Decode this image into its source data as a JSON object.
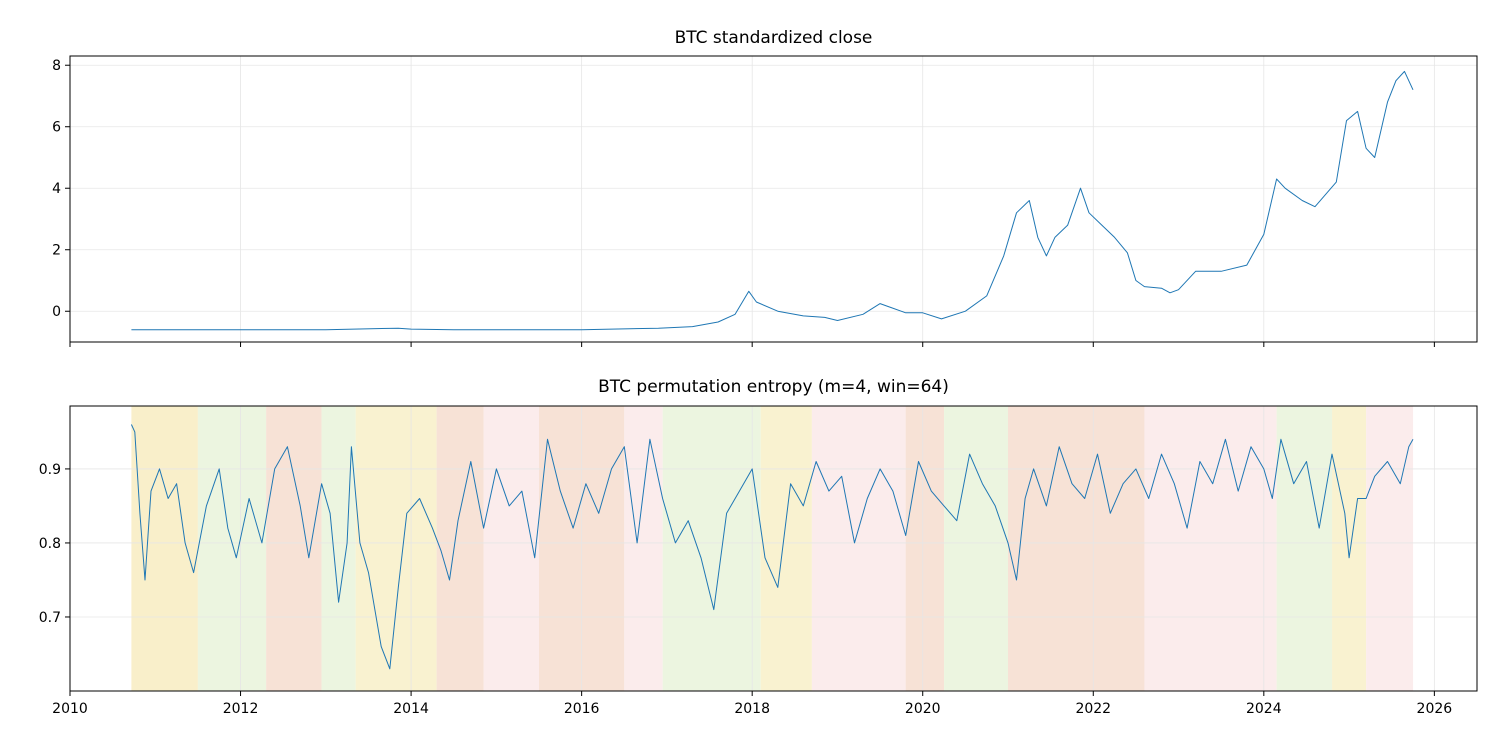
{
  "chart_data": [
    {
      "type": "line",
      "title": "BTC standardized close",
      "xlabel": "",
      "ylabel": "",
      "x_range": [
        2010.0,
        2026.5
      ],
      "ylim": [
        -1.0,
        8.3
      ],
      "y_ticks": [
        0,
        2,
        4,
        6,
        8
      ],
      "y_tick_labels": [
        "0",
        "2",
        "4",
        "6",
        "8"
      ],
      "grid": true,
      "color": "#1f77b4",
      "series": [
        {
          "x": [
            2010.72,
            2012.0,
            2013.0,
            2013.85,
            2014.0,
            2014.5,
            2015.0,
            2016.0,
            2016.9,
            2017.3,
            2017.6,
            2017.8,
            2017.96,
            2018.05,
            2018.3,
            2018.6,
            2018.85,
            2019.0,
            2019.3,
            2019.5,
            2019.8,
            2020.0,
            2020.22,
            2020.5,
            2020.75,
            2020.95,
            2021.1,
            2021.25,
            2021.35,
            2021.45,
            2021.55,
            2021.7,
            2021.85,
            2021.95,
            2022.1,
            2022.25,
            2022.4,
            2022.5,
            2022.6,
            2022.8,
            2022.9,
            2023.0,
            2023.2,
            2023.5,
            2023.8,
            2024.0,
            2024.15,
            2024.25,
            2024.45,
            2024.6,
            2024.85,
            2024.97,
            2025.1,
            2025.2,
            2025.3,
            2025.45,
            2025.55,
            2025.65,
            2025.75
          ],
          "y": [
            -0.6,
            -0.6,
            -0.6,
            -0.55,
            -0.58,
            -0.6,
            -0.6,
            -0.6,
            -0.55,
            -0.5,
            -0.35,
            -0.1,
            0.65,
            0.3,
            0.0,
            -0.15,
            -0.2,
            -0.3,
            -0.1,
            0.25,
            -0.05,
            -0.05,
            -0.25,
            0.0,
            0.5,
            1.8,
            3.2,
            3.6,
            2.4,
            1.8,
            2.4,
            2.8,
            4.0,
            3.2,
            2.8,
            2.4,
            1.9,
            1.0,
            0.8,
            0.75,
            0.6,
            0.7,
            1.3,
            1.3,
            1.5,
            2.5,
            4.3,
            4.0,
            3.6,
            3.4,
            4.2,
            6.2,
            6.5,
            5.3,
            5.0,
            6.8,
            7.5,
            7.8,
            7.2
          ]
        }
      ]
    },
    {
      "type": "line",
      "title": "BTC permutation entropy (m=4, win=64)",
      "xlabel": "",
      "ylabel": "",
      "x_range": [
        2010.0,
        2026.5
      ],
      "x_ticks": [
        2010,
        2012,
        2014,
        2016,
        2018,
        2020,
        2022,
        2024,
        2026
      ],
      "x_tick_labels": [
        "2010",
        "2012",
        "2014",
        "2016",
        "2018",
        "2020",
        "2022",
        "2024",
        "2026"
      ],
      "ylim": [
        0.6,
        0.985
      ],
      "y_ticks": [
        0.7,
        0.8,
        0.9
      ],
      "y_tick_labels": [
        "0.7",
        "0.8",
        "0.9"
      ],
      "grid": true,
      "color": "#1f77b4",
      "series": [
        {
          "x": [
            2010.72,
            2010.76,
            2010.82,
            2010.88,
            2010.95,
            2011.05,
            2011.15,
            2011.25,
            2011.35,
            2011.45,
            2011.6,
            2011.75,
            2011.85,
            2011.95,
            2012.1,
            2012.25,
            2012.4,
            2012.55,
            2012.7,
            2012.8,
            2012.95,
            2013.05,
            2013.15,
            2013.25,
            2013.3,
            2013.4,
            2013.5,
            2013.65,
            2013.75,
            2013.85,
            2013.95,
            2014.1,
            2014.25,
            2014.35,
            2014.45,
            2014.55,
            2014.7,
            2014.85,
            2015.0,
            2015.15,
            2015.3,
            2015.45,
            2015.6,
            2015.75,
            2015.9,
            2016.05,
            2016.2,
            2016.35,
            2016.5,
            2016.65,
            2016.8,
            2016.95,
            2017.1,
            2017.25,
            2017.4,
            2017.55,
            2017.7,
            2017.85,
            2018.0,
            2018.15,
            2018.3,
            2018.45,
            2018.6,
            2018.75,
            2018.9,
            2019.05,
            2019.2,
            2019.35,
            2019.5,
            2019.65,
            2019.8,
            2019.95,
            2020.1,
            2020.25,
            2020.4,
            2020.55,
            2020.7,
            2020.85,
            2021.0,
            2021.1,
            2021.2,
            2021.3,
            2021.45,
            2021.6,
            2021.75,
            2021.9,
            2022.05,
            2022.2,
            2022.35,
            2022.5,
            2022.65,
            2022.8,
            2022.95,
            2023.1,
            2023.25,
            2023.4,
            2023.55,
            2023.7,
            2023.85,
            2024.0,
            2024.1,
            2024.2,
            2024.35,
            2024.5,
            2024.65,
            2024.8,
            2024.95,
            2025.0,
            2025.1,
            2025.2,
            2025.3,
            2025.45,
            2025.6,
            2025.7,
            2025.75
          ],
          "y": [
            0.96,
            0.95,
            0.84,
            0.75,
            0.87,
            0.9,
            0.86,
            0.88,
            0.8,
            0.76,
            0.85,
            0.9,
            0.82,
            0.78,
            0.86,
            0.8,
            0.9,
            0.93,
            0.85,
            0.78,
            0.88,
            0.84,
            0.72,
            0.8,
            0.93,
            0.8,
            0.76,
            0.66,
            0.63,
            0.74,
            0.84,
            0.86,
            0.82,
            0.79,
            0.75,
            0.83,
            0.91,
            0.82,
            0.9,
            0.85,
            0.87,
            0.78,
            0.94,
            0.87,
            0.82,
            0.88,
            0.84,
            0.9,
            0.93,
            0.8,
            0.94,
            0.86,
            0.8,
            0.83,
            0.78,
            0.71,
            0.84,
            0.87,
            0.9,
            0.78,
            0.74,
            0.88,
            0.85,
            0.91,
            0.87,
            0.89,
            0.8,
            0.86,
            0.9,
            0.87,
            0.81,
            0.91,
            0.87,
            0.85,
            0.83,
            0.92,
            0.88,
            0.85,
            0.8,
            0.75,
            0.86,
            0.9,
            0.85,
            0.93,
            0.88,
            0.86,
            0.92,
            0.84,
            0.88,
            0.9,
            0.86,
            0.92,
            0.88,
            0.82,
            0.91,
            0.88,
            0.94,
            0.87,
            0.93,
            0.9,
            0.86,
            0.94,
            0.88,
            0.91,
            0.82,
            0.92,
            0.84,
            0.78,
            0.86,
            0.86,
            0.89,
            0.91,
            0.88,
            0.93,
            0.94
          ]
        }
      ],
      "regime_bands": [
        {
          "from": 2010.72,
          "to": 2011.5,
          "color": "#f7e9b8"
        },
        {
          "from": 2011.5,
          "to": 2012.3,
          "color": "#e6f2d5"
        },
        {
          "from": 2012.3,
          "to": 2012.95,
          "color": "#f4d8c8"
        },
        {
          "from": 2012.95,
          "to": 2013.35,
          "color": "#e6f2d5"
        },
        {
          "from": 2013.35,
          "to": 2014.3,
          "color": "#f7eec0"
        },
        {
          "from": 2014.3,
          "to": 2014.85,
          "color": "#f4d8c8"
        },
        {
          "from": 2014.85,
          "to": 2015.5,
          "color": "#fae6e6"
        },
        {
          "from": 2015.5,
          "to": 2016.5,
          "color": "#f4d8c8"
        },
        {
          "from": 2016.5,
          "to": 2016.95,
          "color": "#fae6e6"
        },
        {
          "from": 2016.95,
          "to": 2018.1,
          "color": "#e6f2d5"
        },
        {
          "from": 2018.1,
          "to": 2018.7,
          "color": "#f7eec0"
        },
        {
          "from": 2018.7,
          "to": 2019.8,
          "color": "#fae6e6"
        },
        {
          "from": 2019.8,
          "to": 2020.25,
          "color": "#f4d8c8"
        },
        {
          "from": 2020.25,
          "to": 2021.0,
          "color": "#e6f2d5"
        },
        {
          "from": 2021.0,
          "to": 2022.6,
          "color": "#f4d8c8"
        },
        {
          "from": 2022.6,
          "to": 2024.15,
          "color": "#fae6e6"
        },
        {
          "from": 2024.15,
          "to": 2024.8,
          "color": "#e6f2d5"
        },
        {
          "from": 2024.8,
          "to": 2025.2,
          "color": "#f7eec0"
        },
        {
          "from": 2025.2,
          "to": 2025.75,
          "color": "#fae6e6"
        }
      ]
    }
  ]
}
